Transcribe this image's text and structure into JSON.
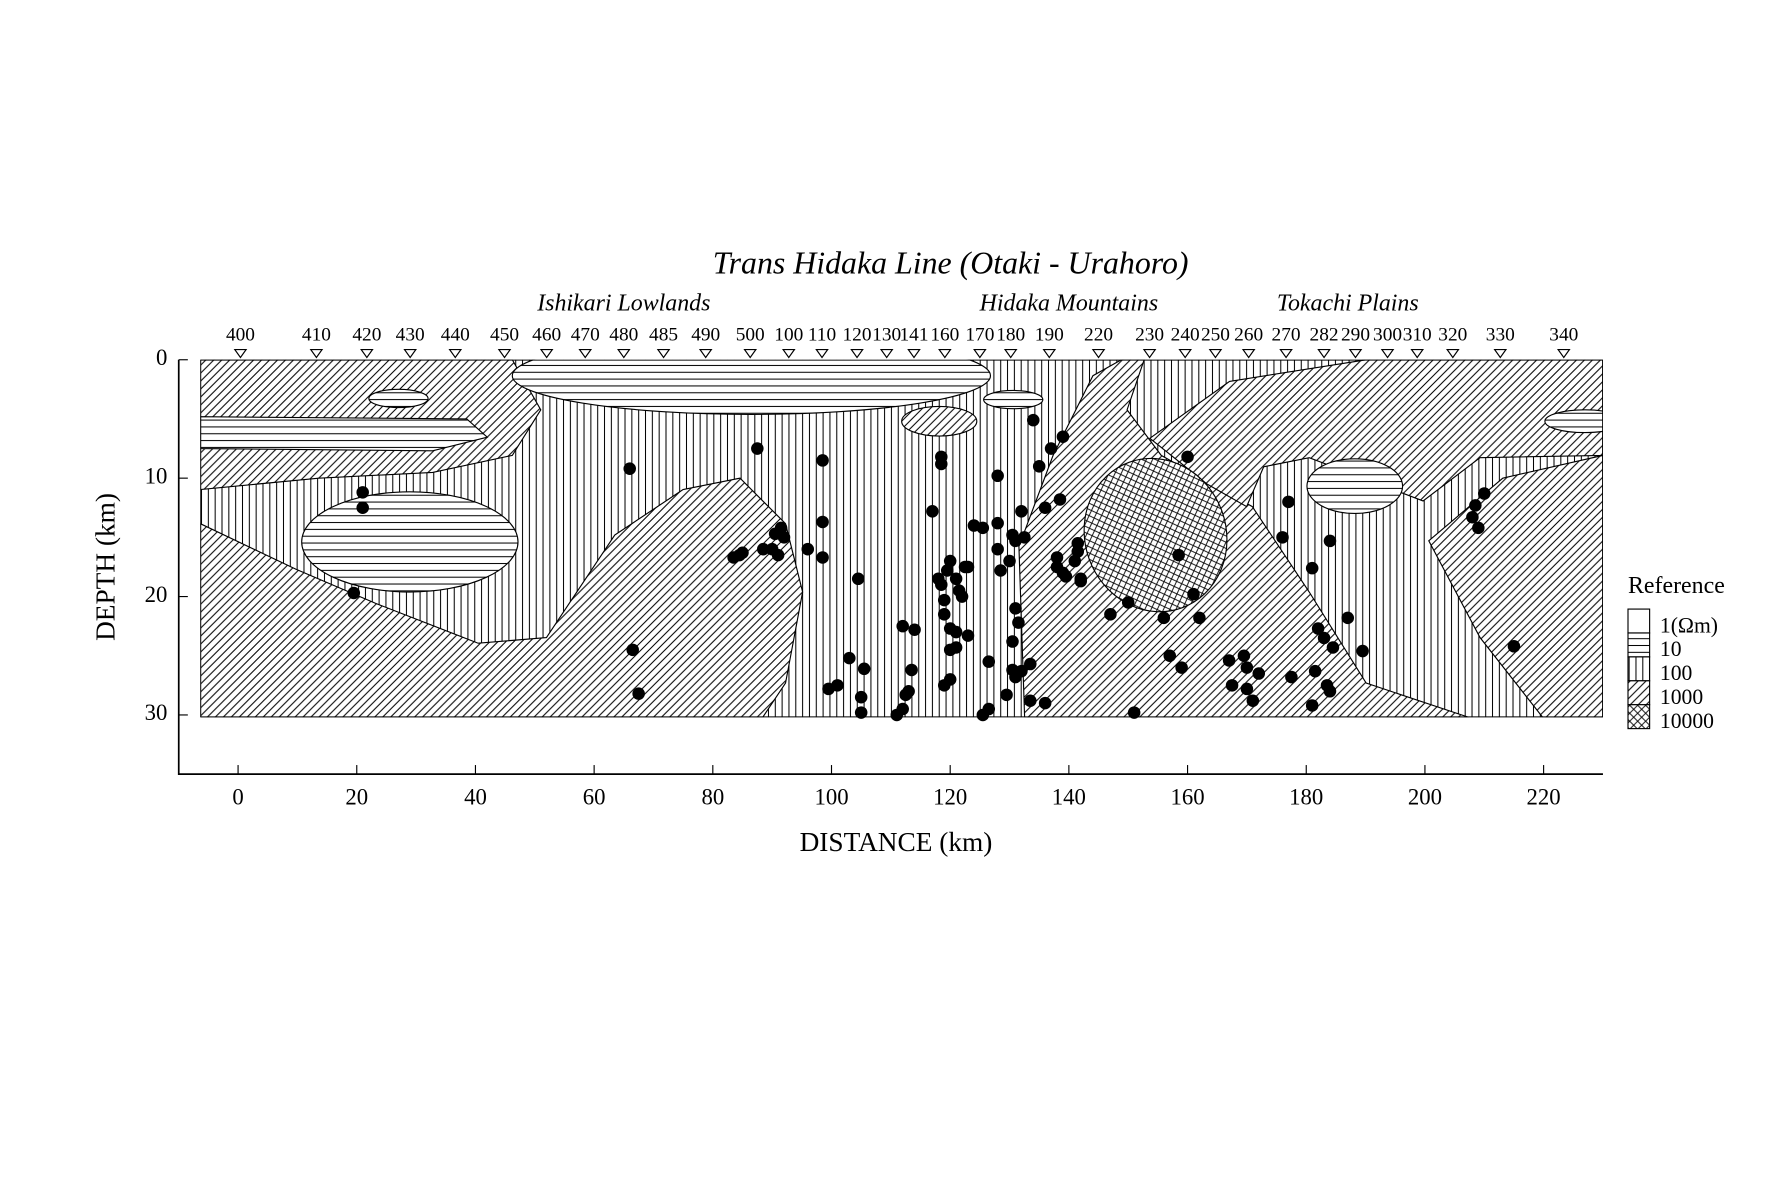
{
  "chart_data": {
    "type": "scatter",
    "title": "Trans Hidaka Line (Otaki - Urahoro)",
    "xlabel": "DISTANCE (km)",
    "ylabel": "DEPTH (km)",
    "xlim": [
      -10,
      230
    ],
    "xticks": [
      0,
      20,
      40,
      60,
      80,
      100,
      120,
      140,
      160,
      180,
      200,
      220
    ],
    "ylim": [
      0,
      35
    ],
    "yticks": [
      0,
      10,
      20,
      30
    ],
    "y_inverted": true,
    "regions": [
      {
        "label": "Ishikari Lowlands",
        "x": 65
      },
      {
        "label": "Hidaka Mountains",
        "x": 140
      },
      {
        "label": "Tokachi Plains",
        "x": 187
      }
    ],
    "stations": {
      "labels": [
        "400",
        "410",
        "420",
        "430",
        "440",
        "450",
        "460",
        "470",
        "480",
        "485",
        "490",
        "500",
        "100",
        "110",
        "120",
        "130",
        "141",
        "160",
        "170",
        "180",
        "190",
        "220",
        "230",
        "240",
        "250",
        "260",
        "270",
        "282",
        "290",
        "300",
        "310",
        "320",
        "330",
        "340"
      ],
      "x": [
        0.4,
        13.2,
        21.7,
        29,
        36.6,
        44.9,
        52,
        58.5,
        65,
        71.7,
        78.8,
        86.3,
        92.8,
        98.4,
        104.3,
        109.3,
        113.9,
        119.1,
        125,
        130.2,
        136.7,
        145,
        153.6,
        159.6,
        164.7,
        170.3,
        176.6,
        183,
        188.3,
        193.7,
        198.7,
        204.7,
        212.7,
        223.4
      ]
    },
    "legend": {
      "title": "Reference",
      "entries": [
        {
          "label": "1(Ωm)",
          "pattern": "blank"
        },
        {
          "label": "10",
          "pattern": "horizontal"
        },
        {
          "label": "100",
          "pattern": "vertical"
        },
        {
          "label": "1000",
          "pattern": "diagonal"
        },
        {
          "label": "10000",
          "pattern": "cross"
        }
      ]
    },
    "color": "#000000",
    "x": [
      21,
      21,
      19.5,
      66,
      66.5,
      67.5,
      87.5,
      83.5,
      84.5,
      85,
      88.5,
      90,
      90.5,
      91.5,
      92,
      91,
      96,
      98.5,
      98.5,
      98.5,
      104.5,
      103,
      105.5,
      105,
      105,
      101,
      99.5,
      112,
      114,
      113.5,
      112.5,
      113,
      112,
      111,
      117,
      118.5,
      118.5,
      118,
      118.5,
      119,
      119,
      119.5,
      120,
      121,
      121.5,
      122,
      122.5,
      123,
      120,
      121,
      121,
      120,
      123,
      120,
      119,
      124,
      125.5,
      126.5,
      126.5,
      125.5,
      128,
      128,
      128,
      128.5,
      130,
      130.5,
      131,
      132,
      132.5,
      131,
      131.5,
      130.5,
      130.5,
      131,
      132,
      133.5,
      129.5,
      133.5,
      136,
      134,
      135,
      137,
      139,
      136,
      138.5,
      138,
      138,
      139,
      141,
      141.5,
      141.5,
      142,
      142,
      139.5,
      147,
      150,
      151,
      156,
      157,
      158.5,
      160,
      159,
      161,
      162,
      167,
      167.5,
      169.5,
      170,
      170,
      171,
      172,
      176,
      177,
      177.5,
      181,
      181,
      182,
      183,
      184,
      184.5,
      183.5,
      184,
      181.5,
      187,
      189.5,
      208,
      208.5,
      209,
      210,
      215
    ],
    "values": [
      11.2,
      12.5,
      19.7,
      9.2,
      24.5,
      28.2,
      7.5,
      16.7,
      16.5,
      16.3,
      16,
      16,
      14.7,
      14.2,
      15,
      16.5,
      16,
      8.5,
      13.7,
      16.7,
      18.5,
      25.2,
      26.1,
      28.5,
      29.8,
      27.5,
      27.8,
      22.5,
      22.8,
      26.2,
      28.3,
      28,
      29.5,
      30,
      12.8,
      8.2,
      8.8,
      18.5,
      19,
      20.3,
      21.5,
      17.8,
      17,
      18.5,
      19.5,
      20,
      17.5,
      17.5,
      22.7,
      23,
      24.3,
      24.5,
      23.3,
      27,
      27.5,
      14,
      14.2,
      25.5,
      29.5,
      30,
      9.8,
      13.8,
      16,
      17.8,
      17,
      14.8,
      15.3,
      12.8,
      15,
      21,
      22.2,
      23.8,
      26.2,
      26.8,
      26.3,
      25.7,
      28.3,
      28.8,
      29,
      5.1,
      9,
      7.5,
      6.5,
      12.5,
      11.8,
      16.7,
      17.5,
      18,
      17,
      15.5,
      16.2,
      18.5,
      18.7,
      18.3,
      21.5,
      20.5,
      29.8,
      21.8,
      25,
      16.5,
      8.2,
      26,
      19.8,
      21.8,
      25.4,
      27.5,
      25,
      26,
      27.8,
      28.8,
      26.5,
      15,
      12,
      26.8,
      17.6,
      29.2,
      22.7,
      23.5,
      15.3,
      24.3,
      27.5,
      28,
      26.3,
      21.8,
      24.6,
      13.3,
      12.3,
      14.2,
      11.3,
      24.2
    ]
  }
}
